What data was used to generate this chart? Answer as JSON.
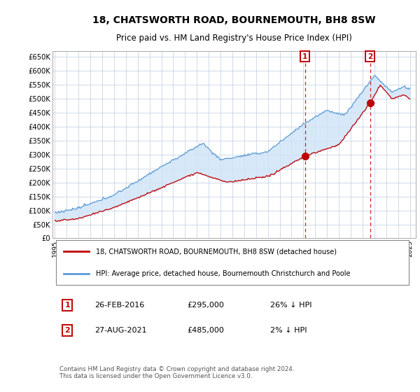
{
  "title": "18, CHATSWORTH ROAD, BOURNEMOUTH, BH8 8SW",
  "subtitle": "Price paid vs. HM Land Registry's House Price Index (HPI)",
  "title_fontsize": 10,
  "subtitle_fontsize": 8.5,
  "ylabel_ticks": [
    "£0",
    "£50K",
    "£100K",
    "£150K",
    "£200K",
    "£250K",
    "£300K",
    "£350K",
    "£400K",
    "£450K",
    "£500K",
    "£550K",
    "£600K",
    "£650K"
  ],
  "ytick_values": [
    0,
    50000,
    100000,
    150000,
    200000,
    250000,
    300000,
    350000,
    400000,
    450000,
    500000,
    550000,
    600000,
    650000
  ],
  "ylim": [
    0,
    670000
  ],
  "xlim_start": 1994.8,
  "xlim_end": 2025.5,
  "hpi_color": "#5b9bd5",
  "price_color": "#c00000",
  "fill_color": "#d0e4f7",
  "background_color": "#ffffff",
  "plot_bg_color": "#ffffff",
  "grid_color": "#c8d4e8",
  "legend_label_price": "18, CHATSWORTH ROAD, BOURNEMOUTH, BH8 8SW (detached house)",
  "legend_label_hpi": "HPI: Average price, detached house, Bournemouth Christchurch and Poole",
  "sale1_label": "1",
  "sale1_date": "26-FEB-2016",
  "sale1_price": "£295,000",
  "sale1_pct": "26% ↓ HPI",
  "sale2_label": "2",
  "sale2_date": "27-AUG-2021",
  "sale2_price": "£485,000",
  "sale2_pct": "2% ↓ HPI",
  "footer_text": "Contains HM Land Registry data © Crown copyright and database right 2024.\nThis data is licensed under the Open Government Licence v3.0.",
  "sale1_year": 2016.15,
  "sale1_value": 295000,
  "sale2_year": 2021.65,
  "sale2_value": 485000,
  "xtick_years": [
    1995,
    1996,
    1997,
    1998,
    1999,
    2000,
    2001,
    2002,
    2003,
    2004,
    2005,
    2006,
    2007,
    2008,
    2009,
    2010,
    2011,
    2012,
    2013,
    2014,
    2015,
    2016,
    2017,
    2018,
    2019,
    2020,
    2021,
    2022,
    2023,
    2024,
    2025
  ]
}
